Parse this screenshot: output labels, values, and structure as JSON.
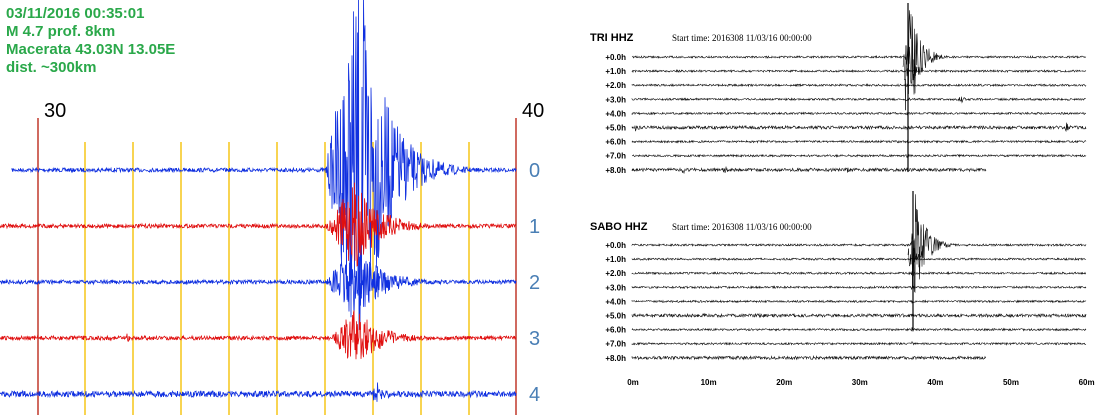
{
  "event_info": [
    "03/11/2016 00:35:01",
    "M 4.7 prof. 8km",
    "Macerata 43.03N 13.05E",
    "dist. ~300km"
  ],
  "left_panel": {
    "time_labels": [
      "30",
      "40"
    ],
    "trace_labels": [
      "0",
      "1",
      "2",
      "3",
      "4"
    ]
  },
  "right_panels": [
    {
      "title": "TRI HHZ",
      "start_time": "Start time: 2016308 11/03/16 00:00:00",
      "row_labels": [
        "+0.0h",
        "+1.0h",
        "+2.0h",
        "+3.0h",
        "+4.0h",
        "+5.0h",
        "+6.0h",
        "+7.0h",
        "+8.0h"
      ]
    },
    {
      "title": "SABO HHZ",
      "start_time": "Start time: 2016308 11/03/16 00:00:00",
      "row_labels": [
        "+0.0h",
        "+1.0h",
        "+2.0h",
        "+3.0h",
        "+4.0h",
        "+5.0h",
        "+6.0h",
        "+7.0h",
        "+8.0h"
      ]
    }
  ],
  "x_axis_labels": [
    "0m",
    "10m",
    "20m",
    "30m",
    "40m",
    "50m",
    "60m"
  ]
}
